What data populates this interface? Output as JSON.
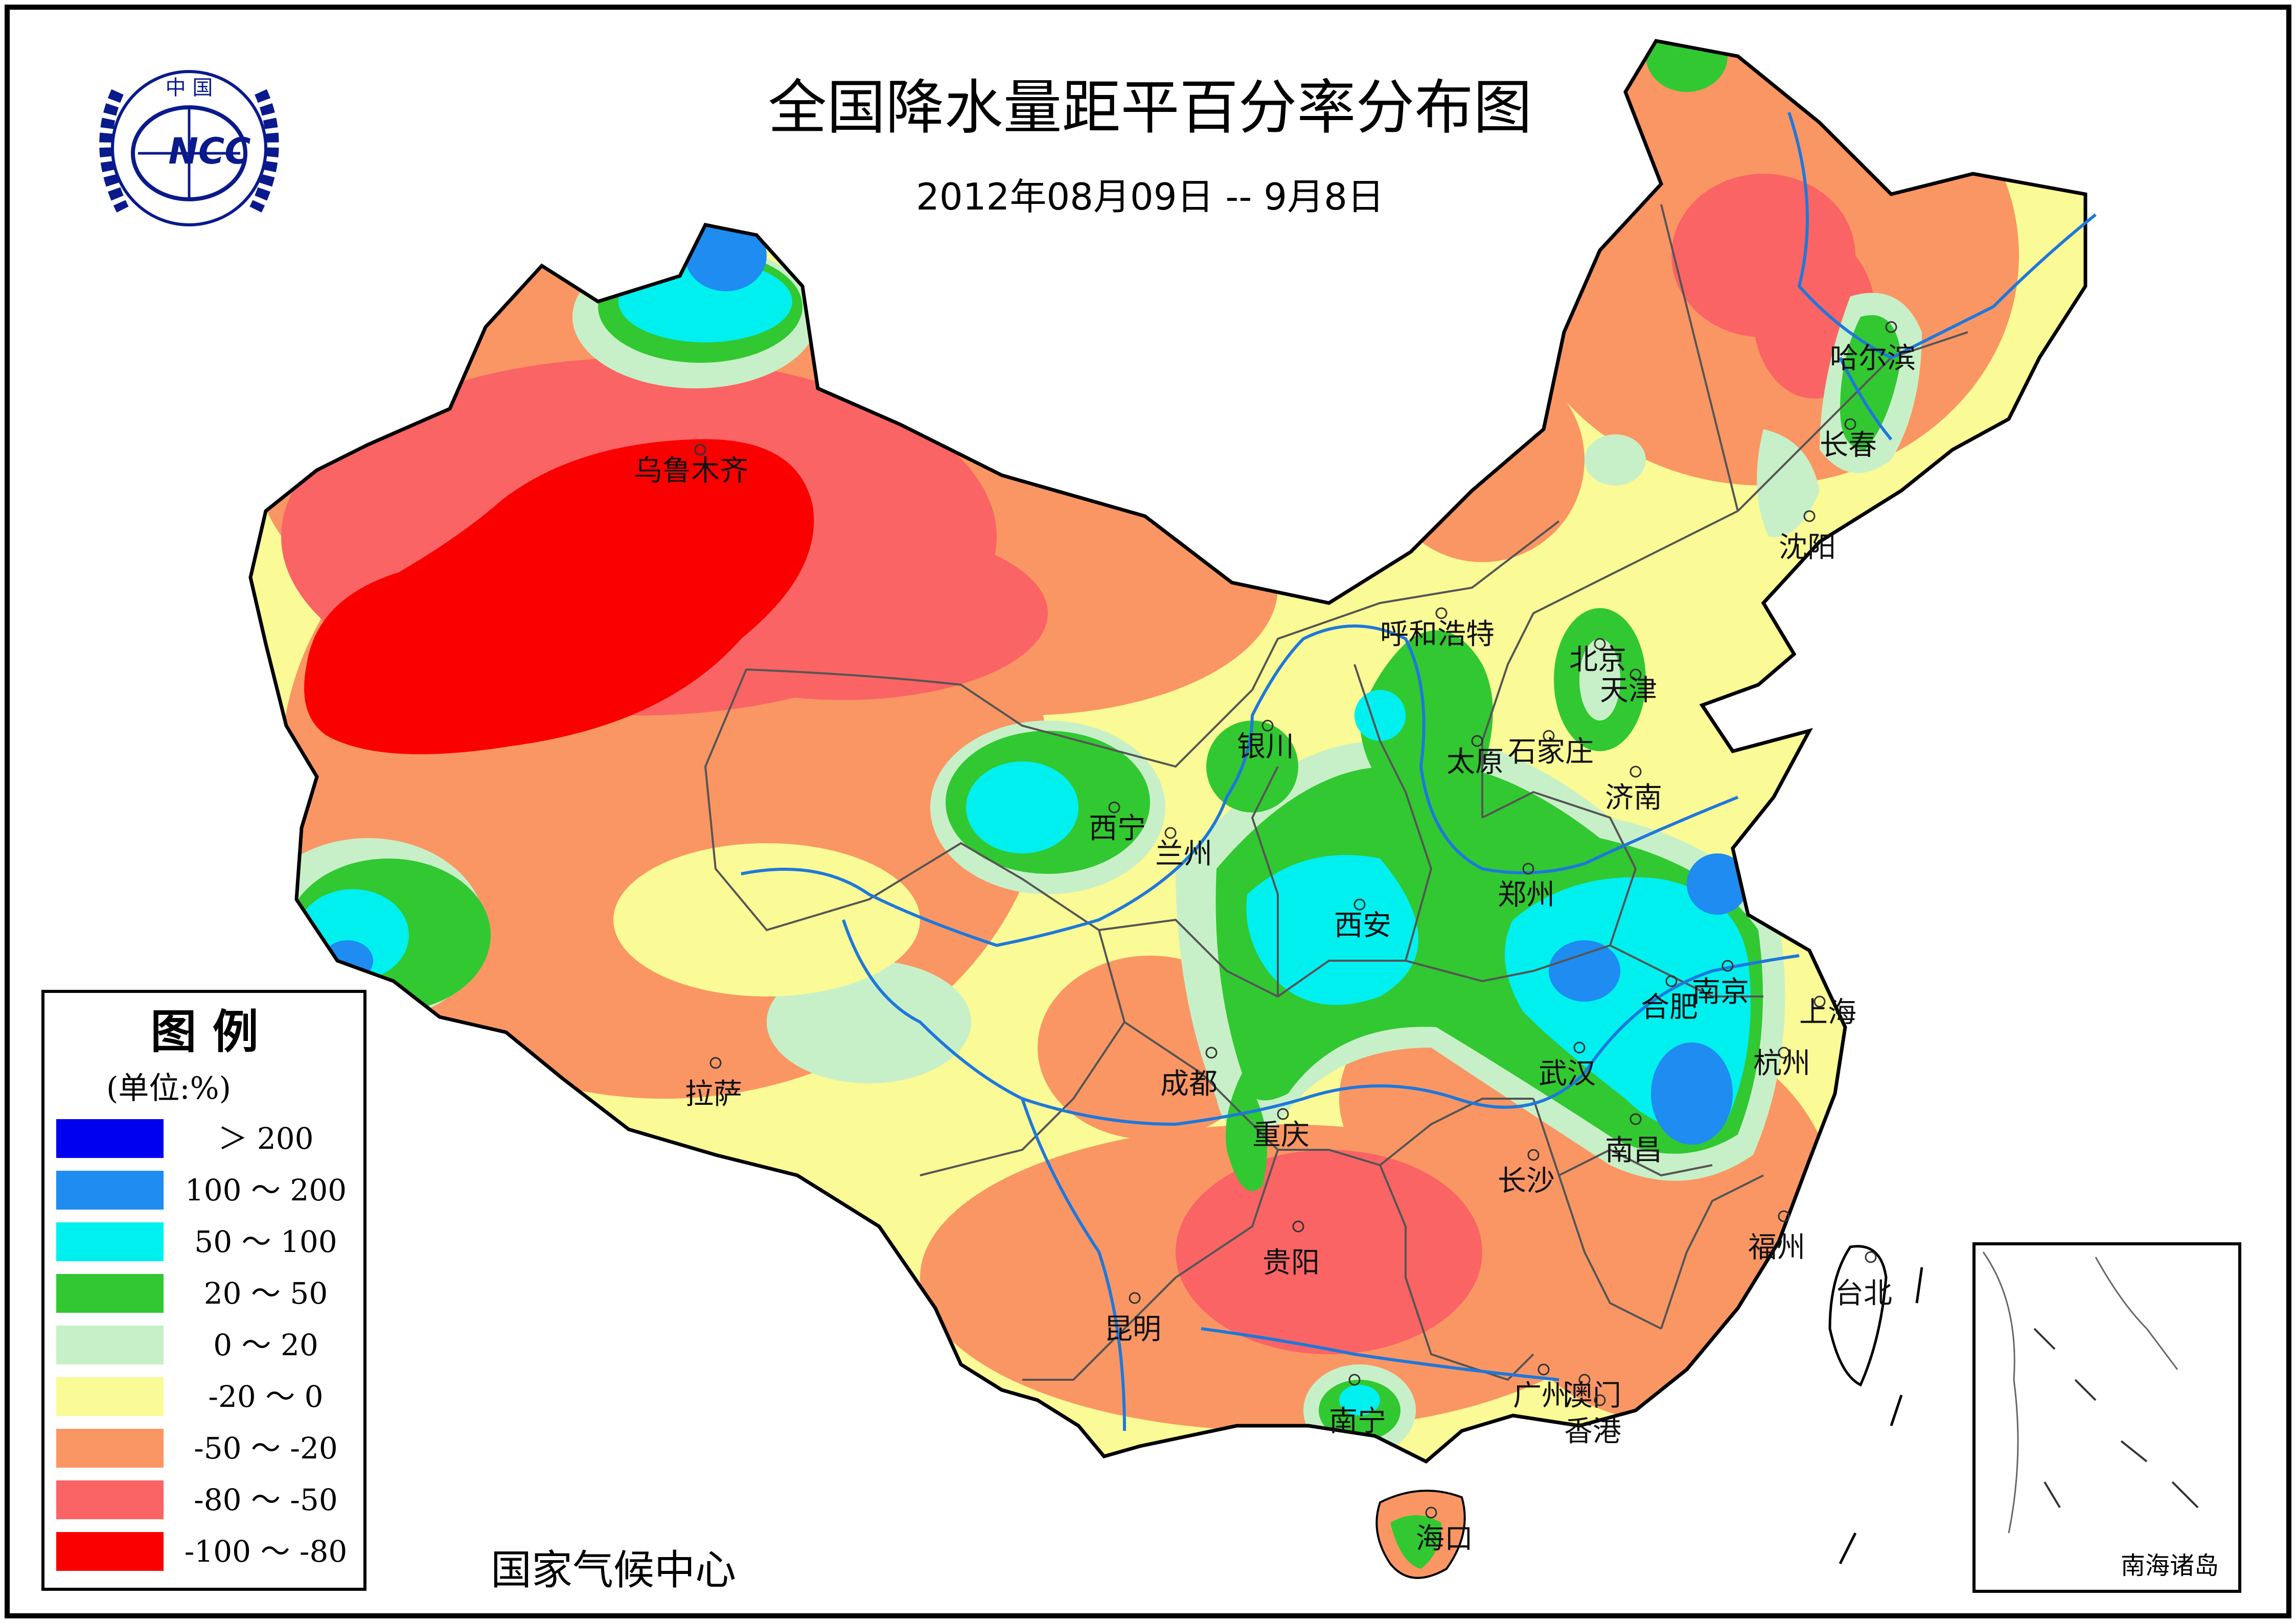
{
  "title": "全国降水量距平百分率分布图",
  "subtitle": "2012年08月09日 -- 9月8日",
  "logo": {
    "top_text": "中 国",
    "center_text": "NCC"
  },
  "legend": {
    "title": "图  例",
    "unit": "(单位:%)",
    "items": [
      {
        "label": "＞ 200",
        "color": "#0000f0"
      },
      {
        "label": "100 ～ 200",
        "color": "#1e8cf0"
      },
      {
        "label": "50 ～ 100",
        "color": "#00f0f0"
      },
      {
        "label": "20 ～ 50",
        "color": "#32c832"
      },
      {
        "label": "0 ～ 20",
        "color": "#c8f0c8"
      },
      {
        "label": "-20 ～ 0",
        "color": "#fafa96"
      },
      {
        "label": "-50 ～ -20",
        "color": "#fa9664"
      },
      {
        "label": "-80 ～ -50",
        "color": "#fa6464"
      },
      {
        "label": "-100 ～ -80",
        "color": "#fa0000"
      }
    ]
  },
  "source": "国家气候中心",
  "inset_label": "南海诸岛",
  "cities": [
    {
      "name": "乌鲁木齐"
    },
    {
      "name": "拉萨"
    },
    {
      "name": "西宁"
    },
    {
      "name": "兰州"
    },
    {
      "name": "银川"
    },
    {
      "name": "呼和浩特"
    },
    {
      "name": "北京"
    },
    {
      "name": "天津"
    },
    {
      "name": "太原"
    },
    {
      "name": "石家庄"
    },
    {
      "name": "济南"
    },
    {
      "name": "郑州"
    },
    {
      "name": "西安"
    },
    {
      "name": "成都"
    },
    {
      "name": "重庆"
    },
    {
      "name": "贵阳"
    },
    {
      "name": "昆明"
    },
    {
      "name": "南宁"
    },
    {
      "name": "广州"
    },
    {
      "name": "澳门"
    },
    {
      "name": "香港"
    },
    {
      "name": "海口"
    },
    {
      "name": "长沙"
    },
    {
      "name": "武汉"
    },
    {
      "name": "南昌"
    },
    {
      "name": "合肥"
    },
    {
      "name": "南京"
    },
    {
      "name": "上海"
    },
    {
      "name": "杭州"
    },
    {
      "name": "福州"
    },
    {
      "name": "台北"
    },
    {
      "name": "沈阳"
    },
    {
      "name": "长春"
    },
    {
      "name": "哈尔滨"
    }
  ]
}
